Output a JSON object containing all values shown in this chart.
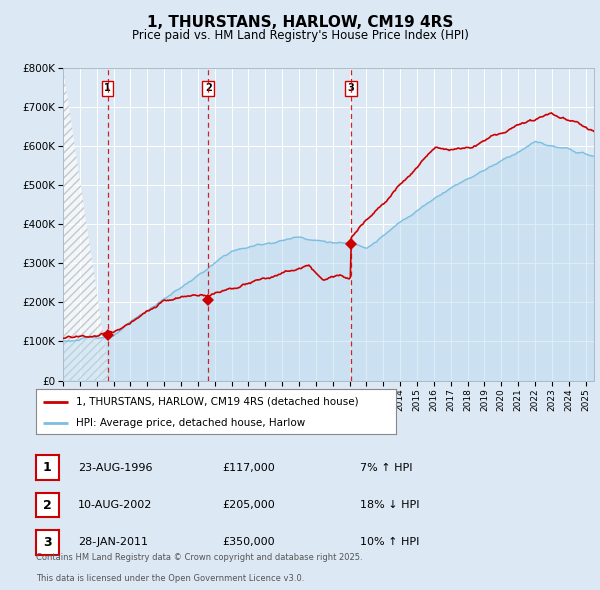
{
  "title": "1, THURSTANS, HARLOW, CM19 4RS",
  "subtitle": "Price paid vs. HM Land Registry's House Price Index (HPI)",
  "ylim": [
    0,
    800000
  ],
  "yticks": [
    0,
    100000,
    200000,
    300000,
    400000,
    500000,
    600000,
    700000,
    800000
  ],
  "ytick_labels": [
    "£0",
    "£100K",
    "£200K",
    "£300K",
    "£400K",
    "£500K",
    "£600K",
    "£700K",
    "£800K"
  ],
  "hpi_color": "#7bbfdf",
  "hpi_fill_color": "#b8d9ee",
  "price_color": "#cc0000",
  "bg_color": "#dce9f5",
  "plot_bg": "#dce9f5",
  "grid_color": "#ffffff",
  "vline_color": "#cc0000",
  "transactions": [
    {
      "index": 1,
      "date": "23-AUG-1996",
      "price": 117000,
      "price_str": "£117,000",
      "pct": "7%",
      "dir": "↑",
      "year_x": 1996.64
    },
    {
      "index": 2,
      "date": "10-AUG-2002",
      "price": 205000,
      "price_str": "£205,000",
      "pct": "18%",
      "dir": "↓",
      "year_x": 2002.61
    },
    {
      "index": 3,
      "date": "28-JAN-2011",
      "price": 350000,
      "price_str": "£350,000",
      "pct": "10%",
      "dir": "↑",
      "year_x": 2011.08
    }
  ],
  "legend_label_price": "1, THURSTANS, HARLOW, CM19 4RS (detached house)",
  "legend_label_hpi": "HPI: Average price, detached house, Harlow",
  "footer_line1": "Contains HM Land Registry data © Crown copyright and database right 2025.",
  "footer_line2": "This data is licensed under the Open Government Licence v3.0.",
  "xmin": 1994.0,
  "xmax": 2025.5
}
